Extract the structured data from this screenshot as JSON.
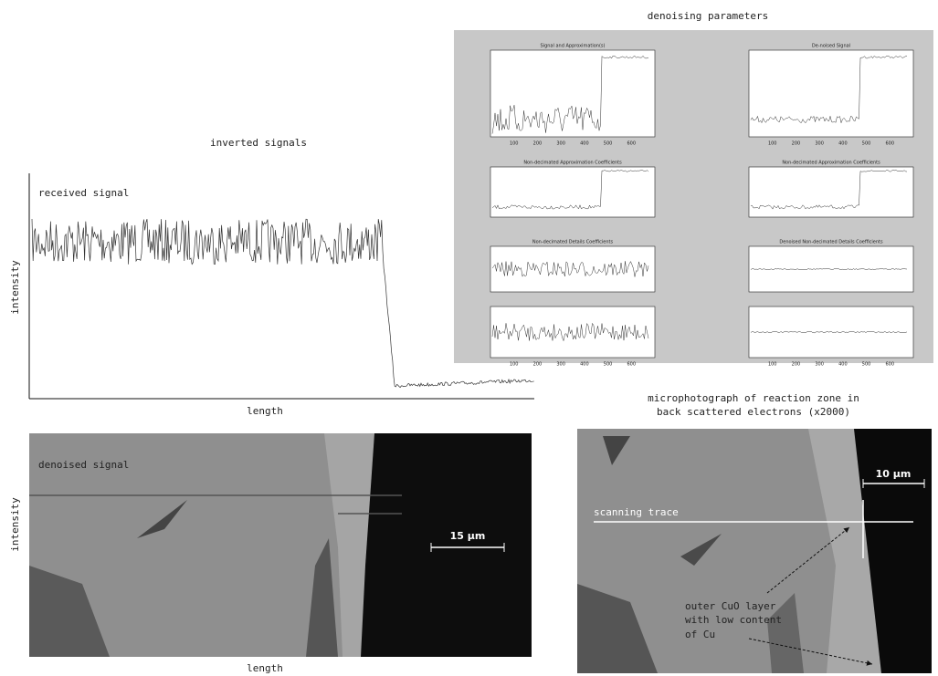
{
  "parameters_panel": {
    "title": "denoising parameters",
    "subplots": [
      "Signal and Approximation(s)",
      "De-noised Signal",
      "Non-decimated Approximation Coefficients",
      "Non-decimated Approximation Coefficients",
      "Non-decimated Details Coefficients",
      "Denoised Non-decimated Details Coefficients"
    ],
    "x_ticks": [
      "100",
      "200",
      "300",
      "400",
      "500",
      "600"
    ]
  },
  "inverted_signals": {
    "title": "inverted signals",
    "trace_label": "received signal",
    "y_label": "intensity",
    "x_label": "length"
  },
  "denoised": {
    "trace_label": "denoised signal",
    "y_label": "intensity",
    "x_label": "length",
    "scale_bar": "15 µm"
  },
  "micrograph": {
    "title_lines": [
      "microphotograph of reaction zone in",
      "back scattered electrons (x2000)"
    ],
    "trace_label": "scanning trace",
    "scale_bar": "10 µm",
    "annotation_lines": [
      "outer CuO layer",
      "with low content",
      "of Cu"
    ]
  }
}
